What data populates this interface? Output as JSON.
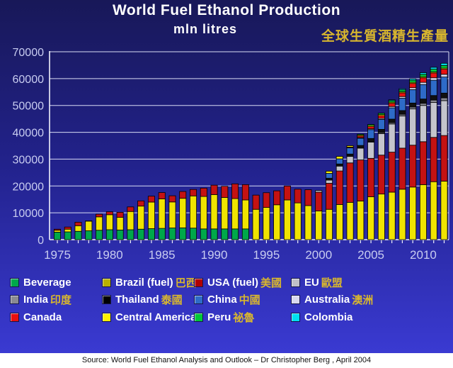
{
  "header": {
    "title": "World Fuel Ethanol Production",
    "subtitle": "mln litres",
    "title_zh": "全球生質酒精生產量"
  },
  "source_note": "Source: World Fuel Ethanol Analysis and Outlook – Dr Christopher Berg , April 2004",
  "colors": {
    "background_top": "#181858",
    "background_bottom": "#3A3AD2",
    "gridline": "#D8DCF4",
    "axis": "#F0F2FC",
    "axis_label": "#C8CCF0",
    "title_gold": "#D8B62E",
    "source_strip": "#FFFFFF"
  },
  "legend": {
    "items": [
      {
        "label_en": "Beverage",
        "label_zh": "",
        "color": "#00A84A"
      },
      {
        "label_en": "Brazil (fuel)",
        "label_zh": "巴西",
        "color": "#B8B000"
      },
      {
        "label_en": "USA (fuel)",
        "label_zh": "美國",
        "color": "#B00000"
      },
      {
        "label_en": "EU",
        "label_zh": " 歐盟",
        "color": "#C0C0C8"
      },
      {
        "label_en": "India",
        "label_zh": "印度",
        "color": "#8A8A92"
      },
      {
        "label_en": "Thailand",
        "label_zh": " 泰國",
        "color": "#000000"
      },
      {
        "label_en": "China",
        "label_zh": " 中國",
        "color": "#2E6BC8"
      },
      {
        "label_en": "Australia",
        "label_zh": " 澳洲",
        "color": "#D8D8EE"
      },
      {
        "label_en": "Canada",
        "label_zh": "",
        "color": "#E81010"
      },
      {
        "label_en": "Central America",
        "label_zh": "",
        "color": "#FFF000"
      },
      {
        "label_en": "Peru",
        "label_zh": " 祕魯",
        "color": "#00C838"
      },
      {
        "label_en": "Colombia",
        "label_zh": "",
        "color": "#00E0F0"
      }
    ]
  },
  "chart_data": {
    "type": "bar",
    "stacked": true,
    "title": "World Fuel Ethanol Production",
    "ylabel": "mln litres",
    "ylim": [
      0,
      70000
    ],
    "yticks": [
      0,
      10000,
      20000,
      30000,
      40000,
      50000,
      60000,
      70000
    ],
    "grid": true,
    "legend_position": "bottom",
    "years": [
      1975,
      1976,
      1977,
      1978,
      1979,
      1980,
      1981,
      1982,
      1983,
      1984,
      1985,
      1986,
      1987,
      1988,
      1989,
      1990,
      1991,
      1992,
      1993,
      1994,
      1995,
      1996,
      1997,
      1998,
      1999,
      2000,
      2001,
      2002,
      2003,
      2004,
      2005,
      2006,
      2007,
      2008,
      2009,
      2010,
      2011,
      2012
    ],
    "labeled_years": [
      1975,
      1980,
      1985,
      1990,
      1995,
      2000,
      2005,
      2010
    ],
    "series": [
      {
        "name": "Beverage",
        "color": "#00A84A",
        "values": [
          2800,
          2900,
          3100,
          3300,
          3500,
          3700,
          3600,
          3700,
          3900,
          4100,
          4200,
          4350,
          4400,
          4300,
          4000,
          4000,
          4000,
          4000,
          4000,
          0,
          0,
          0,
          0,
          0,
          0,
          0,
          0,
          0,
          0,
          0,
          0,
          0,
          0,
          0,
          0,
          0,
          0,
          0
        ]
      },
      {
        "name": "Brazil (fuel)",
        "color": "#F0E400",
        "values": [
          700,
          1000,
          2100,
          3600,
          5000,
          5600,
          4700,
          6800,
          8600,
          9900,
          11000,
          9700,
          11000,
          12000,
          12100,
          12800,
          11700,
          11300,
          10800,
          11300,
          12000,
          13000,
          14800,
          13700,
          12700,
          10700,
          11300,
          13100,
          13900,
          14400,
          16000,
          17000,
          17700,
          18800,
          19600,
          20500,
          21600,
          21800
        ]
      },
      {
        "name": "USA (fuel)",
        "color": "#C41212",
        "values": [
          400,
          800,
          1300,
          100,
          1000,
          1100,
          1900,
          1700,
          1950,
          2200,
          2350,
          2300,
          2550,
          2400,
          3100,
          3500,
          4200,
          5500,
          5700,
          5300,
          5500,
          5200,
          5200,
          5100,
          5900,
          7000,
          9700,
          12500,
          14700,
          15300,
          14300,
          14500,
          14900,
          15300,
          15600,
          16000,
          16500,
          17000
        ]
      },
      {
        "name": "EU",
        "color": "#C4C4CC",
        "values": [
          0,
          0,
          0,
          0,
          0,
          0,
          0,
          0,
          0,
          0,
          0,
          0,
          0,
          0,
          0,
          0,
          0,
          0,
          0,
          0,
          0,
          0,
          0,
          0,
          0,
          600,
          1200,
          1800,
          2400,
          4400,
          6000,
          8000,
          10500,
          12000,
          13500,
          13500,
          13000,
          13000
        ]
      },
      {
        "name": "India",
        "color": "#8A8A92",
        "values": [
          0,
          0,
          0,
          0,
          0,
          0,
          0,
          0,
          0,
          0,
          0,
          0,
          0,
          0,
          0,
          0,
          0,
          0,
          0,
          0,
          0,
          0,
          0,
          0,
          0,
          0,
          0,
          0,
          0,
          0,
          300,
          400,
          500,
          600,
          700,
          800,
          900,
          1000
        ]
      },
      {
        "name": "Thailand",
        "color": "#101010",
        "values": [
          0,
          0,
          0,
          0,
          0,
          0,
          0,
          0,
          0,
          0,
          0,
          0,
          0,
          0,
          0,
          0,
          0,
          0,
          0,
          0,
          0,
          0,
          0,
          0,
          0,
          0,
          700,
          800,
          900,
          1000,
          1100,
          1200,
          1300,
          1400,
          1500,
          1600,
          1700,
          1800
        ]
      },
      {
        "name": "China",
        "color": "#2E6BC8",
        "values": [
          0,
          0,
          0,
          0,
          0,
          0,
          0,
          0,
          0,
          0,
          0,
          0,
          0,
          0,
          0,
          0,
          0,
          0,
          0,
          0,
          0,
          0,
          0,
          0,
          0,
          0,
          1800,
          1900,
          2300,
          2700,
          3300,
          3700,
          4200,
          4600,
          5000,
          5400,
          5700,
          6000
        ]
      },
      {
        "name": "Australia",
        "color": "#D8D8EE",
        "values": [
          0,
          0,
          0,
          0,
          0,
          0,
          0,
          0,
          0,
          0,
          0,
          0,
          0,
          0,
          0,
          0,
          0,
          0,
          0,
          0,
          0,
          0,
          0,
          0,
          0,
          0,
          0,
          0,
          0,
          200,
          300,
          400,
          500,
          600,
          700,
          800,
          900,
          1000
        ]
      },
      {
        "name": "Canada",
        "color": "#E81010",
        "values": [
          0,
          0,
          0,
          0,
          0,
          0,
          0,
          0,
          0,
          0,
          0,
          0,
          0,
          0,
          0,
          0,
          0,
          0,
          0,
          0,
          0,
          0,
          0,
          0,
          0,
          0,
          0,
          0,
          300,
          600,
          800,
          1000,
          1200,
          1400,
          1600,
          1700,
          1800,
          1900
        ]
      },
      {
        "name": "Central America",
        "color": "#FFF000",
        "values": [
          0,
          0,
          0,
          0,
          0,
          0,
          0,
          0,
          0,
          0,
          0,
          0,
          0,
          0,
          0,
          0,
          0,
          0,
          0,
          0,
          0,
          0,
          0,
          0,
          0,
          0,
          800,
          900,
          500,
          400,
          400,
          400,
          400,
          400,
          400,
          400,
          400,
          400
        ]
      },
      {
        "name": "Peru",
        "color": "#00C838",
        "values": [
          0,
          0,
          0,
          0,
          0,
          0,
          0,
          0,
          0,
          0,
          0,
          0,
          0,
          0,
          0,
          0,
          0,
          0,
          0,
          0,
          0,
          0,
          0,
          0,
          0,
          0,
          0,
          0,
          0,
          300,
          400,
          500,
          600,
          700,
          800,
          900,
          1000,
          1000
        ]
      },
      {
        "name": "Colombia",
        "color": "#00E0F0",
        "values": [
          0,
          0,
          0,
          0,
          0,
          0,
          0,
          0,
          0,
          0,
          0,
          0,
          0,
          0,
          0,
          0,
          0,
          0,
          0,
          0,
          0,
          0,
          0,
          0,
          0,
          0,
          0,
          0,
          0,
          0,
          0,
          0,
          300,
          400,
          500,
          600,
          700,
          800
        ]
      }
    ]
  }
}
